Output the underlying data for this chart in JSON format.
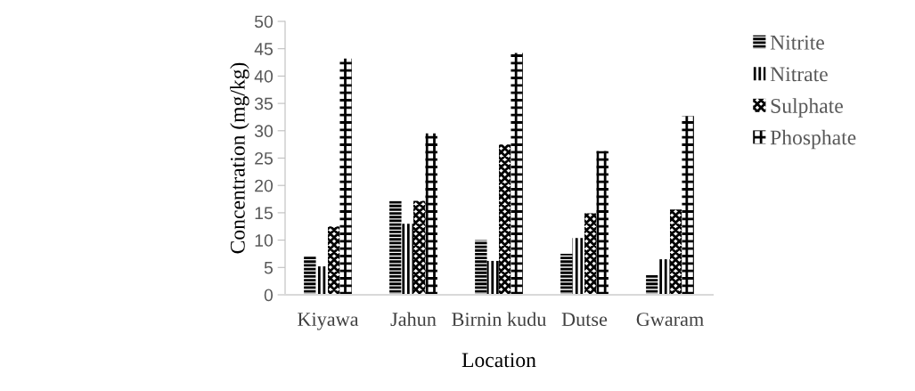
{
  "chart_data": {
    "type": "bar",
    "xlabel": "Location",
    "ylabel": "Concentration (mg/kg)",
    "categories": [
      "Kiyawa",
      "Jahun",
      "Birnin kudu",
      "Dutse",
      "Gwaram"
    ],
    "series": [
      {
        "name": "Nitrite",
        "color": "#000000",
        "values": [
          7.1,
          17.2,
          10.0,
          7.5,
          3.6
        ]
      },
      {
        "name": "Nitrate",
        "color": "#000000",
        "values": [
          5.2,
          13.0,
          6.2,
          10.4,
          6.5
        ]
      },
      {
        "name": "Sulphate",
        "color": "#000000",
        "values": [
          12.5,
          17.2,
          27.5,
          14.9,
          15.6
        ]
      },
      {
        "name": "Phosphate",
        "color": "#000000",
        "values": [
          43.2,
          29.5,
          44.2,
          26.3,
          32.7
        ]
      }
    ],
    "ylim": [
      0,
      50
    ],
    "yticks": [
      0,
      5,
      10,
      15,
      20,
      25,
      30,
      35,
      40,
      45,
      50
    ],
    "grid": false,
    "legend": "right"
  }
}
